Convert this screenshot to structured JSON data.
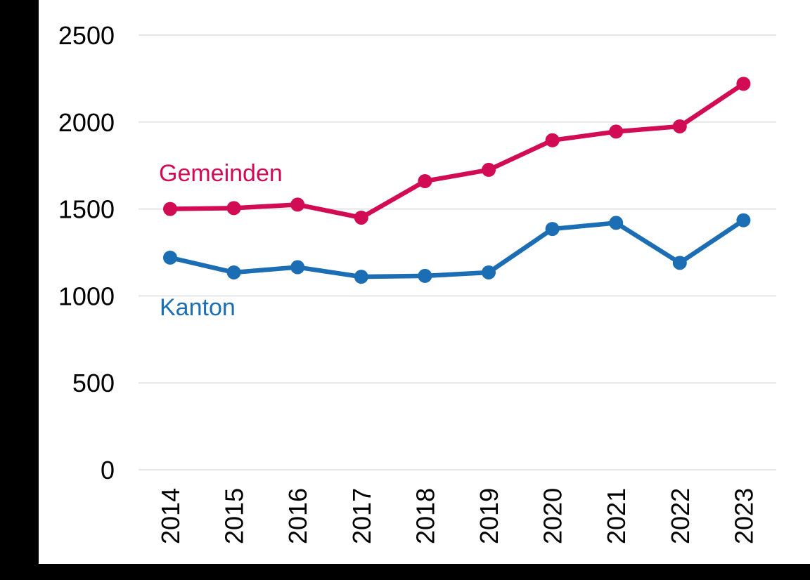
{
  "frame": {
    "color": "#000000"
  },
  "chart_data": {
    "type": "line",
    "title": "",
    "xlabel": "",
    "ylabel": "",
    "categories": [
      "2014",
      "2015",
      "2016",
      "2017",
      "2018",
      "2019",
      "2020",
      "2021",
      "2022",
      "2023"
    ],
    "series": [
      {
        "name": "Gemeinden",
        "color": "#d20b55",
        "values": [
          1500,
          1505,
          1525,
          1450,
          1660,
          1725,
          1895,
          1945,
          1975,
          2220
        ]
      },
      {
        "name": "Kanton",
        "color": "#1b6eb3",
        "values": [
          1220,
          1135,
          1165,
          1110,
          1115,
          1135,
          1385,
          1420,
          1190,
          1435
        ]
      }
    ],
    "ylim": [
      0,
      2500
    ],
    "yticks": [
      "0",
      "500",
      "1000",
      "1500",
      "2000",
      "2500"
    ],
    "grid": true,
    "gridline_color": "#e5e5e5",
    "tick_label_color": "#000000",
    "legend_position": "inline-labels",
    "x_tick_rotation_degrees": 90
  }
}
